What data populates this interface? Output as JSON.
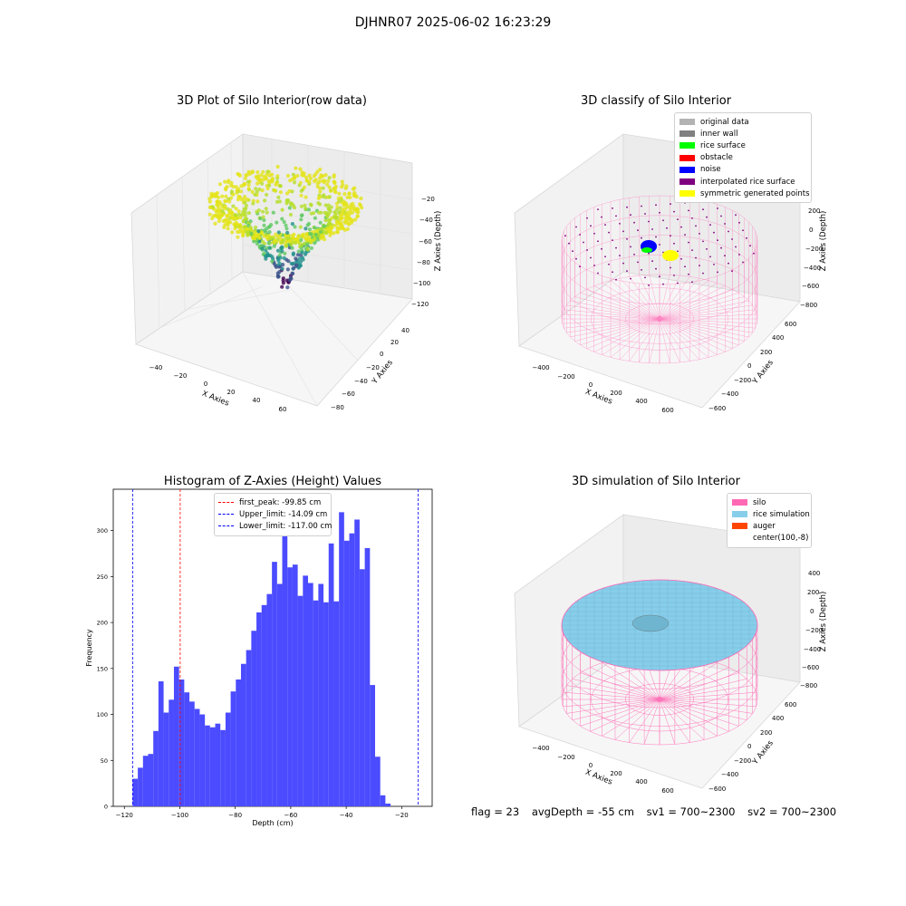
{
  "suptitle": "DJHNR07 2025-06-02 16:23:29",
  "panels": {
    "raw": {
      "title": "3D Plot of Silo Interior(row data)",
      "xlabel": "X Axies",
      "ylabel": "Y Axies",
      "zlabel": "Z Axies (Depth)",
      "xticks": [
        "−40",
        "−20",
        "0",
        "20",
        "40",
        "60"
      ],
      "yticks": [
        "−80",
        "−60",
        "−40",
        "−20",
        "0",
        "20",
        "40"
      ],
      "zticks": [
        "−20",
        "−40",
        "−60",
        "−80",
        "−100",
        "−120"
      ]
    },
    "classify": {
      "title": "3D classify of Silo Interior",
      "xlabel": "X Axies",
      "ylabel": "Y Axies",
      "zlabel": "Z Axies (Depth)",
      "xticks": [
        "−400",
        "−200",
        "0",
        "200",
        "400",
        "600"
      ],
      "yticks": [
        "−600",
        "−400",
        "−200",
        "0",
        "200",
        "400",
        "600"
      ],
      "zticks": [
        "200",
        "0",
        "−200",
        "−400",
        "−600",
        "−800"
      ],
      "legend": [
        {
          "label": "original data",
          "color": "#b3b3b3"
        },
        {
          "label": "inner wall",
          "color": "#808080"
        },
        {
          "label": "rice surface",
          "color": "#00ff00"
        },
        {
          "label": "obstacle",
          "color": "#ff0000"
        },
        {
          "label": "noise",
          "color": "#0000ff"
        },
        {
          "label": "interpolated rice surface",
          "color": "#800080"
        },
        {
          "label": "symmetric generated points",
          "color": "#ffff00"
        }
      ]
    },
    "simulation": {
      "title": "3D simulation of Silo Interior",
      "xlabel": "X Axies",
      "ylabel": "Y Axies",
      "zlabel": "Z Axies (Depth)",
      "xticks": [
        "−400",
        "−200",
        "0",
        "200",
        "400",
        "600"
      ],
      "yticks": [
        "−600",
        "−400",
        "−200",
        "0",
        "200",
        "400",
        "600"
      ],
      "zticks": [
        "400",
        "200",
        "0",
        "−200",
        "−400",
        "−600",
        "−800"
      ],
      "legend": [
        {
          "label": "silo",
          "color": "#ff69b4"
        },
        {
          "label": "rice simulation",
          "color": "#87ceeb"
        },
        {
          "label": "auger",
          "color": "#ff4500"
        },
        {
          "label": "center(100,-8)",
          "color": "#ffffff"
        }
      ]
    }
  },
  "footer": {
    "flag": "flag = 23",
    "avg": "avgDepth = -55 cm",
    "sv1": "sv1 = 700~2300",
    "sv2": "sv2 = 700~2300"
  },
  "chart_data": {
    "type": "bar",
    "title": "Histogram of Z-Axies (Height) Values",
    "xlabel": "Depth (cm)",
    "ylabel": "Frequency",
    "xlim": [
      -124,
      -9
    ],
    "ylim": [
      0,
      345
    ],
    "xtick_values": [
      -120,
      -100,
      -80,
      -60,
      -40,
      -20
    ],
    "xtick_labels": [
      "−120",
      "−100",
      "−80",
      "−60",
      "−40",
      "−20"
    ],
    "ytick_values": [
      0,
      50,
      100,
      150,
      200,
      250,
      300
    ],
    "bin_start": -117.0,
    "bin_width": 1.86,
    "bar_color": "#4b4bff",
    "counts": [
      30,
      42,
      55,
      57,
      82,
      136,
      102,
      116,
      152,
      138,
      124,
      114,
      106,
      100,
      88,
      86,
      90,
      83,
      102,
      125,
      138,
      155,
      170,
      191,
      211,
      219,
      231,
      266,
      242,
      296,
      260,
      263,
      229,
      251,
      243,
      224,
      242,
      222,
      286,
      223,
      320,
      289,
      297,
      312,
      258,
      281,
      132,
      54,
      12,
      3
    ],
    "lines": [
      {
        "label": "first_peak: -99.85 cm",
        "value": -99.85,
        "color": "#ff0000"
      },
      {
        "label": "Upper_limit: -14.09 cm",
        "value": -14.09,
        "color": "#0000ff"
      },
      {
        "label": "Lower_limit: -117.00 cm",
        "value": -117.0,
        "color": "#0000ff"
      }
    ]
  }
}
